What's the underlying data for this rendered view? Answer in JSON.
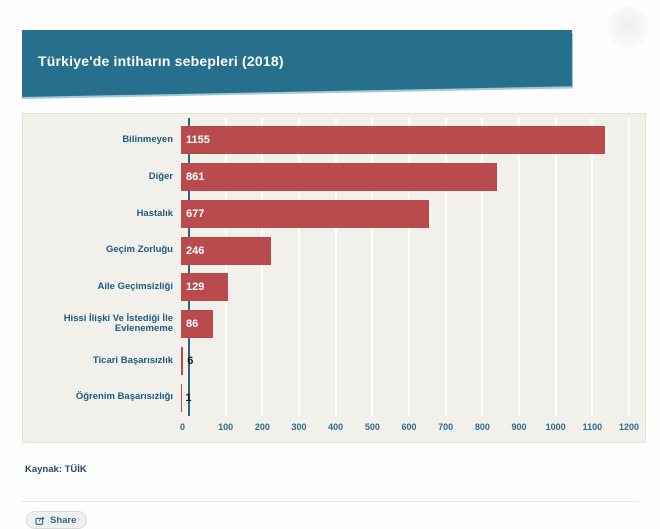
{
  "page": {
    "title": "Türkiye'de intiharın sebepleri (2018)",
    "source_label": "Kaynak: TÜİK",
    "share_label": "Share"
  },
  "colors": {
    "banner_teal": "#266f8d",
    "bar_red": "#b94b4d",
    "panel_background": "#f1f0ea",
    "category_label_blue": "#1e5a7e",
    "tick_label_blue": "#2f6c89",
    "axis_line_blue": "#2c6484",
    "value_inside": "#ffffff",
    "value_outside": "#1a1a1a"
  },
  "icons": {
    "share": "share-box-arrow"
  },
  "chart_data": {
    "type": "bar",
    "orientation": "horizontal",
    "title": "Türkiye'de intiharın sebepleri (2018)",
    "categories": [
      "Bilinmeyen",
      "Diğer",
      "Hastalık",
      "Geçim Zorluğu",
      "Aile Geçimsizliği",
      "Hissi İlişki Ve İstediği İle Evlenememe",
      "Ticari Başarısızlık",
      "Öğrenim Başarısızlığı"
    ],
    "values": [
      1155,
      861,
      677,
      246,
      129,
      86,
      6,
      1
    ],
    "xlim": [
      0,
      1200
    ],
    "x_ticks": [
      0,
      100,
      200,
      300,
      400,
      500,
      600,
      700,
      800,
      900,
      1000,
      1100,
      1200
    ],
    "grid": true,
    "legend": false,
    "xlabel": "",
    "ylabel": "",
    "source": "Kaynak: TÜİK"
  }
}
